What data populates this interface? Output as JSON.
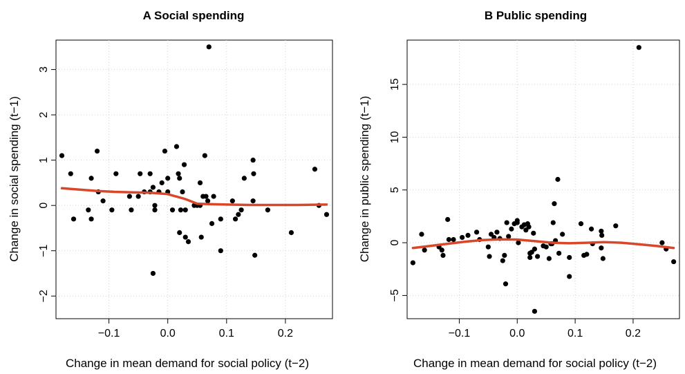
{
  "chart_data": [
    {
      "type": "scatter",
      "title": "A Social spending",
      "xlabel": "Change in mean demand for social policy (t−2)",
      "ylabel": "Change in social spending (t−1)",
      "xlim": [
        -0.19,
        0.28
      ],
      "ylim": [
        -2.5,
        3.65
      ],
      "xticks": [
        -0.1,
        0.0,
        0.1,
        0.2
      ],
      "xtick_labels": [
        "−0.1",
        "0.0",
        "0.1",
        "0.2"
      ],
      "yticks": [
        -2,
        -1,
        0,
        1,
        2,
        3
      ],
      "ytick_labels": [
        "−2",
        "−1",
        "0",
        "1",
        "2",
        "3"
      ],
      "grid": true,
      "point_color": "#000000",
      "smooth_color": "#d9472b",
      "points": [
        {
          "x": -0.18,
          "y": 1.1
        },
        {
          "x": -0.165,
          "y": 0.7
        },
        {
          "x": -0.16,
          "y": -0.3
        },
        {
          "x": -0.135,
          "y": -0.1
        },
        {
          "x": -0.13,
          "y": 0.6
        },
        {
          "x": -0.13,
          "y": -0.3
        },
        {
          "x": -0.12,
          "y": 1.2
        },
        {
          "x": -0.118,
          "y": 0.3
        },
        {
          "x": -0.11,
          "y": 0.1
        },
        {
          "x": -0.095,
          "y": -0.1
        },
        {
          "x": -0.088,
          "y": 0.7
        },
        {
          "x": -0.065,
          "y": 0.2
        },
        {
          "x": -0.062,
          "y": -0.1
        },
        {
          "x": -0.05,
          "y": 0.2
        },
        {
          "x": -0.047,
          "y": 0.7
        },
        {
          "x": -0.04,
          "y": 0.3
        },
        {
          "x": -0.03,
          "y": 0.7
        },
        {
          "x": -0.03,
          "y": 0.3
        },
        {
          "x": -0.025,
          "y": 0.4
        },
        {
          "x": -0.022,
          "y": 0.0
        },
        {
          "x": -0.022,
          "y": -0.1
        },
        {
          "x": -0.025,
          "y": -1.5
        },
        {
          "x": -0.015,
          "y": 0.3
        },
        {
          "x": -0.01,
          "y": 0.5
        },
        {
          "x": -0.005,
          "y": 1.2
        },
        {
          "x": 0.0,
          "y": 0.6
        },
        {
          "x": 0.0,
          "y": 0.3
        },
        {
          "x": 0.008,
          "y": -0.1
        },
        {
          "x": 0.015,
          "y": 1.3
        },
        {
          "x": 0.018,
          "y": 0.7
        },
        {
          "x": 0.02,
          "y": 0.6
        },
        {
          "x": 0.02,
          "y": -0.6
        },
        {
          "x": 0.022,
          "y": -0.1
        },
        {
          "x": 0.025,
          "y": 0.3
        },
        {
          "x": 0.028,
          "y": 0.9
        },
        {
          "x": 0.03,
          "y": -0.1
        },
        {
          "x": 0.03,
          "y": -0.7
        },
        {
          "x": 0.035,
          "y": -0.8
        },
        {
          "x": 0.045,
          "y": 0.0
        },
        {
          "x": 0.05,
          "y": 0.0
        },
        {
          "x": 0.055,
          "y": 0.5
        },
        {
          "x": 0.055,
          "y": 0.0
        },
        {
          "x": 0.057,
          "y": -0.7
        },
        {
          "x": 0.06,
          "y": 0.2
        },
        {
          "x": 0.063,
          "y": 1.1
        },
        {
          "x": 0.065,
          "y": 0.2
        },
        {
          "x": 0.068,
          "y": 0.1
        },
        {
          "x": 0.07,
          "y": 3.5
        },
        {
          "x": 0.075,
          "y": -0.4
        },
        {
          "x": 0.078,
          "y": 0.2
        },
        {
          "x": 0.09,
          "y": -0.3
        },
        {
          "x": 0.09,
          "y": -1.0
        },
        {
          "x": 0.11,
          "y": 0.1
        },
        {
          "x": 0.115,
          "y": -0.3
        },
        {
          "x": 0.12,
          "y": -0.2
        },
        {
          "x": 0.125,
          "y": -0.1
        },
        {
          "x": 0.13,
          "y": 0.6
        },
        {
          "x": 0.145,
          "y": 1.0
        },
        {
          "x": 0.146,
          "y": 0.7
        },
        {
          "x": 0.145,
          "y": 0.1
        },
        {
          "x": 0.148,
          "y": -1.1
        },
        {
          "x": 0.17,
          "y": -0.1
        },
        {
          "x": 0.21,
          "y": -0.6
        },
        {
          "x": 0.25,
          "y": 0.8
        },
        {
          "x": 0.257,
          "y": 0.0
        },
        {
          "x": 0.27,
          "y": -0.2
        }
      ],
      "smooth": [
        {
          "x": -0.18,
          "y": 0.38
        },
        {
          "x": -0.15,
          "y": 0.35
        },
        {
          "x": -0.12,
          "y": 0.32
        },
        {
          "x": -0.09,
          "y": 0.3
        },
        {
          "x": -0.06,
          "y": 0.29
        },
        {
          "x": -0.03,
          "y": 0.28
        },
        {
          "x": 0.0,
          "y": 0.25
        },
        {
          "x": 0.03,
          "y": 0.14
        },
        {
          "x": 0.05,
          "y": 0.04
        },
        {
          "x": 0.07,
          "y": 0.03
        },
        {
          "x": 0.1,
          "y": 0.02
        },
        {
          "x": 0.14,
          "y": 0.01
        },
        {
          "x": 0.18,
          "y": 0.01
        },
        {
          "x": 0.22,
          "y": 0.01
        },
        {
          "x": 0.27,
          "y": 0.02
        }
      ]
    },
    {
      "type": "scatter",
      "title": "B Public spending",
      "xlabel": "Change in mean demand for social policy (t−2)",
      "ylabel": "Change in public spending (t−1)",
      "xlim": [
        -0.19,
        0.28
      ],
      "ylim": [
        -7.2,
        19.2
      ],
      "xticks": [
        -0.1,
        0.0,
        0.1,
        0.2
      ],
      "xtick_labels": [
        "−0.1",
        "0.0",
        "0.1",
        "0.2"
      ],
      "yticks": [
        -5,
        0,
        5,
        10,
        15
      ],
      "ytick_labels": [
        "−5",
        "0",
        "5",
        "10",
        "15"
      ],
      "grid": true,
      "point_color": "#000000",
      "smooth_color": "#d9472b",
      "points": [
        {
          "x": -0.18,
          "y": -1.9
        },
        {
          "x": -0.165,
          "y": 0.8
        },
        {
          "x": -0.16,
          "y": -0.7
        },
        {
          "x": -0.135,
          "y": -0.4
        },
        {
          "x": -0.13,
          "y": -0.7
        },
        {
          "x": -0.128,
          "y": -1.2
        },
        {
          "x": -0.12,
          "y": 2.2
        },
        {
          "x": -0.118,
          "y": 0.3
        },
        {
          "x": -0.11,
          "y": 0.3
        },
        {
          "x": -0.095,
          "y": 0.5
        },
        {
          "x": -0.085,
          "y": 0.7
        },
        {
          "x": -0.07,
          "y": 1.0
        },
        {
          "x": -0.065,
          "y": 0.3
        },
        {
          "x": -0.05,
          "y": -0.4
        },
        {
          "x": -0.048,
          "y": -1.3
        },
        {
          "x": -0.045,
          "y": 0.8
        },
        {
          "x": -0.04,
          "y": 0.5
        },
        {
          "x": -0.035,
          "y": 1.0
        },
        {
          "x": -0.03,
          "y": 0.4
        },
        {
          "x": -0.025,
          "y": -1.7
        },
        {
          "x": -0.022,
          "y": -1.2
        },
        {
          "x": -0.018,
          "y": 1.9
        },
        {
          "x": -0.015,
          "y": 0.6
        },
        {
          "x": -0.02,
          "y": -3.9
        },
        {
          "x": -0.01,
          "y": 1.3
        },
        {
          "x": -0.005,
          "y": 1.8
        },
        {
          "x": 0.0,
          "y": 2.1
        },
        {
          "x": 0.0,
          "y": 1.9
        },
        {
          "x": 0.002,
          "y": 0.0
        },
        {
          "x": 0.008,
          "y": 1.5
        },
        {
          "x": 0.012,
          "y": 1.7
        },
        {
          "x": 0.015,
          "y": 1.2
        },
        {
          "x": 0.018,
          "y": 1.8
        },
        {
          "x": 0.02,
          "y": 1.5
        },
        {
          "x": 0.022,
          "y": -1.0
        },
        {
          "x": 0.022,
          "y": -1.4
        },
        {
          "x": 0.025,
          "y": -0.9
        },
        {
          "x": 0.028,
          "y": 0.9
        },
        {
          "x": 0.03,
          "y": -0.6
        },
        {
          "x": 0.03,
          "y": -6.5
        },
        {
          "x": 0.035,
          "y": -1.3
        },
        {
          "x": 0.045,
          "y": -0.3
        },
        {
          "x": 0.05,
          "y": -0.4
        },
        {
          "x": 0.055,
          "y": -1.5
        },
        {
          "x": 0.058,
          "y": -0.1
        },
        {
          "x": 0.06,
          "y": -0.1
        },
        {
          "x": 0.062,
          "y": 1.9
        },
        {
          "x": 0.064,
          "y": 3.7
        },
        {
          "x": 0.066,
          "y": 0.2
        },
        {
          "x": 0.07,
          "y": 6.0
        },
        {
          "x": 0.072,
          "y": -1.0
        },
        {
          "x": 0.078,
          "y": 0.8
        },
        {
          "x": 0.09,
          "y": -1.4
        },
        {
          "x": 0.09,
          "y": -3.2
        },
        {
          "x": 0.11,
          "y": 1.8
        },
        {
          "x": 0.115,
          "y": -1.2
        },
        {
          "x": 0.12,
          "y": -1.1
        },
        {
          "x": 0.128,
          "y": 1.3
        },
        {
          "x": 0.13,
          "y": -0.1
        },
        {
          "x": 0.145,
          "y": 1.1
        },
        {
          "x": 0.146,
          "y": 0.7
        },
        {
          "x": 0.148,
          "y": -1.5
        },
        {
          "x": 0.145,
          "y": -0.5
        },
        {
          "x": 0.17,
          "y": 1.6
        },
        {
          "x": 0.21,
          "y": 18.5
        },
        {
          "x": 0.25,
          "y": 0.0
        },
        {
          "x": 0.257,
          "y": -0.6
        },
        {
          "x": 0.27,
          "y": -1.8
        }
      ],
      "smooth": [
        {
          "x": -0.18,
          "y": -0.5
        },
        {
          "x": -0.15,
          "y": -0.3
        },
        {
          "x": -0.12,
          "y": -0.1
        },
        {
          "x": -0.09,
          "y": 0.1
        },
        {
          "x": -0.06,
          "y": 0.25
        },
        {
          "x": -0.03,
          "y": 0.32
        },
        {
          "x": 0.0,
          "y": 0.3
        },
        {
          "x": 0.03,
          "y": 0.15
        },
        {
          "x": 0.06,
          "y": 0.0
        },
        {
          "x": 0.09,
          "y": -0.05
        },
        {
          "x": 0.12,
          "y": 0.0
        },
        {
          "x": 0.15,
          "y": 0.05
        },
        {
          "x": 0.18,
          "y": 0.0
        },
        {
          "x": 0.21,
          "y": -0.15
        },
        {
          "x": 0.24,
          "y": -0.3
        },
        {
          "x": 0.27,
          "y": -0.5
        }
      ]
    }
  ]
}
